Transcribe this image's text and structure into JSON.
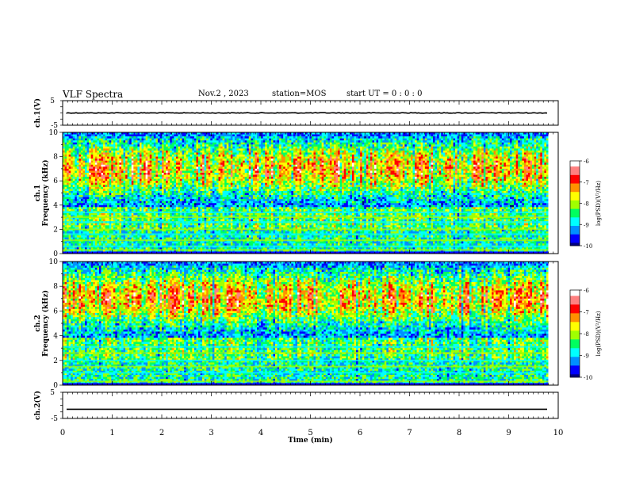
{
  "header": {
    "title": "VLF Spectra",
    "date": "Nov.2  , 2023",
    "station": "station=MOS",
    "start": "start  UT =   0  : 0   : 0"
  },
  "chart_data": [
    {
      "type": "line",
      "name": "ch1-waveform",
      "ylabel": "ch.1(V)",
      "ylim": [
        -5,
        5
      ],
      "yticks": [
        "5",
        "-5"
      ],
      "x": [
        0,
        10
      ],
      "y": [
        0,
        0
      ],
      "note_color": "#000000"
    },
    {
      "type": "heatmap",
      "name": "ch1-spectrogram",
      "ylabel": "ch.1\nFrequency  (kHz)",
      "ylim": [
        0,
        10
      ],
      "yticks": [
        0,
        2,
        4,
        6,
        8,
        10
      ],
      "xlim": [
        0,
        10
      ],
      "data_end_min": 9.8,
      "colorbar": {
        "label": "log(PSD)(V²/Hz)",
        "ticks": [
          "-6",
          "-7",
          "-8",
          "-9",
          "-10"
        ],
        "range": [
          -10,
          -6
        ]
      },
      "bands_khz": [
        0.3,
        0.6,
        1.1,
        1.6,
        2.0,
        2.6,
        3.0,
        3.4
      ]
    },
    {
      "type": "heatmap",
      "name": "ch2-spectrogram",
      "ylabel": "ch.2\nFrequency  (kHz)",
      "ylim": [
        0,
        10
      ],
      "yticks": [
        0,
        2,
        4,
        6,
        8,
        10
      ],
      "xlim": [
        0,
        10
      ],
      "data_end_min": 9.8,
      "colorbar": {
        "label": "log(PSD)(V²/Hz)",
        "ticks": [
          "-6",
          "-7",
          "-8",
          "-9",
          "-10"
        ],
        "range": [
          -10,
          -6
        ]
      },
      "bands_khz": [
        0.3,
        1.0,
        1.5,
        2.0,
        2.6,
        3.1
      ]
    },
    {
      "type": "line",
      "name": "ch2-waveform",
      "ylabel": "ch.2(V)",
      "ylim": [
        -5,
        5
      ],
      "yticks": [
        "5",
        "-5"
      ],
      "x": [
        0,
        10
      ],
      "y": [
        -1.5,
        -1.5
      ]
    }
  ],
  "xaxis": {
    "label": "Time  (min)",
    "ticks": [
      "0",
      "1",
      "2",
      "3",
      "4",
      "5",
      "6",
      "7",
      "8",
      "9",
      "10"
    ]
  },
  "colormap": [
    "#000080",
    "#0000ff",
    "#0090ff",
    "#00ffff",
    "#00ff60",
    "#a0ff00",
    "#ffff00",
    "#ff9000",
    "#ff0000",
    "#ff8080",
    "#ffffff"
  ]
}
